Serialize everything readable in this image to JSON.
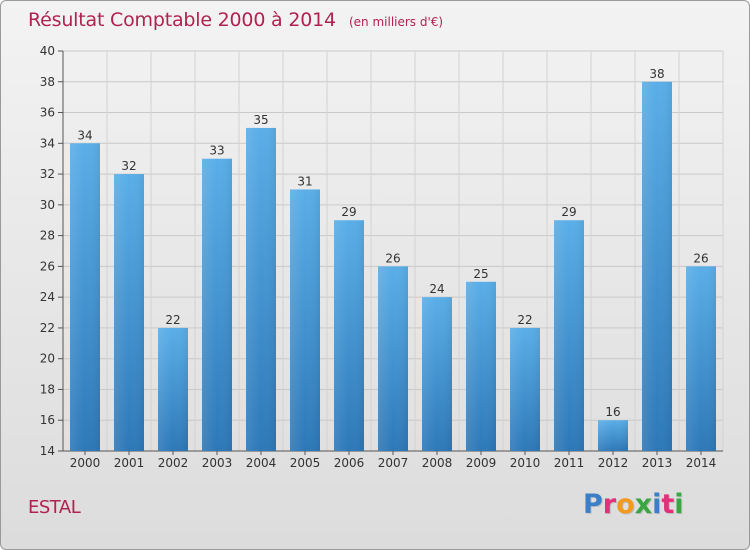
{
  "header": {
    "title": "Résultat Comptable 2000 à 2014",
    "subtitle": "(en milliers d'€)"
  },
  "footer": {
    "commune": "ESTAL",
    "logo_text": "Proxiti",
    "logo_colors": [
      "#3a7fc8",
      "#e2307a",
      "#f29a1e",
      "#3aa642",
      "#3a7fc8",
      "#e2307a",
      "#3aa642"
    ]
  },
  "colors": {
    "title": "#b0224f",
    "bar_top": "#5aaee8",
    "bar_bottom": "#2d78b8"
  },
  "chart_data": {
    "type": "bar",
    "title": "Résultat Comptable 2000 à 2014",
    "subtitle": "(en milliers d'€)",
    "categories": [
      "2000",
      "2001",
      "2002",
      "2003",
      "2004",
      "2005",
      "2006",
      "2007",
      "2008",
      "2009",
      "2010",
      "2011",
      "2012",
      "2013",
      "2014"
    ],
    "values": [
      34,
      32,
      22,
      33,
      35,
      31,
      29,
      26,
      24,
      25,
      22,
      29,
      16,
      38,
      26
    ],
    "ylim": [
      14,
      40
    ],
    "yticks": [
      14,
      16,
      18,
      20,
      22,
      24,
      26,
      28,
      30,
      32,
      34,
      36,
      38,
      40
    ],
    "xlabel": "",
    "ylabel": "",
    "grid": true,
    "data_labels": true
  }
}
